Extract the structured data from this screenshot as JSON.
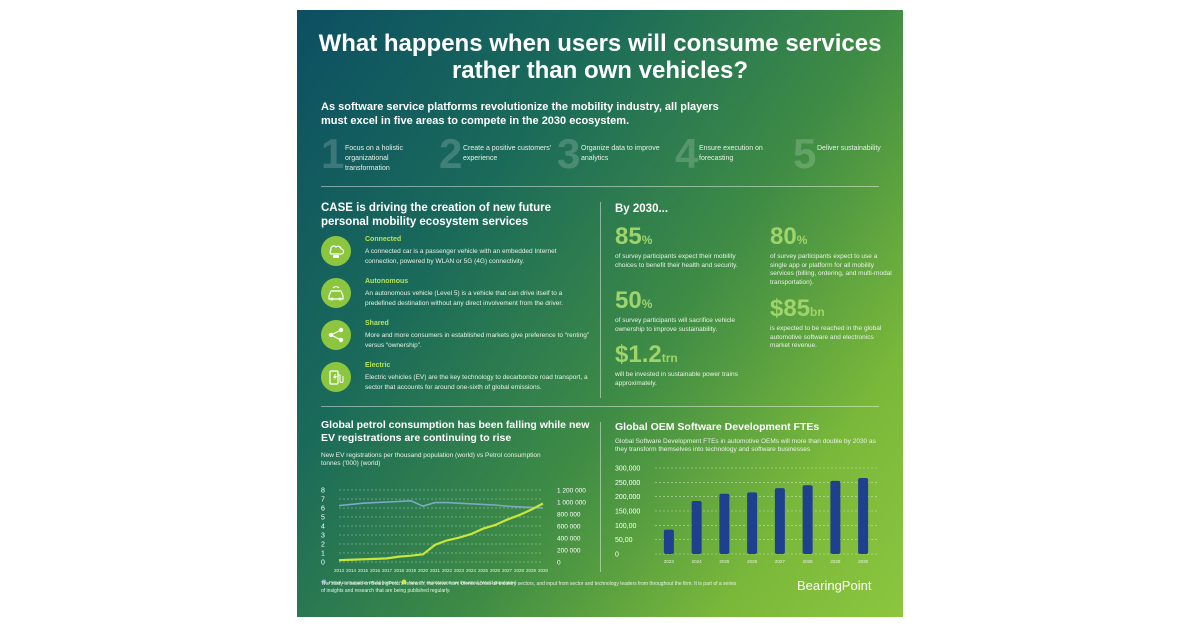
{
  "title": "What happens when users will consume services rather than own vehicles?",
  "intro": "As software service platforms revolutionize the mobility industry, all players must excel in five areas to compete in the 2030 ecosystem.",
  "steps": [
    {
      "num": "1",
      "text": "Focus on a holistic organizational transformation"
    },
    {
      "num": "2",
      "text": "Create a positive customers’ experience"
    },
    {
      "num": "3",
      "text": "Organize data to improve analytics"
    },
    {
      "num": "4",
      "text": "Ensure execution on forecasting"
    },
    {
      "num": "5",
      "text": "Deliver sustainability"
    }
  ],
  "case": {
    "heading": "CASE is driving the creation of new future personal mobility ecosystem services",
    "items": [
      {
        "icon": "cloud-car-icon",
        "title": "Connected",
        "desc": "A connected car is a passenger vehicle with an embedded Internet connection, powered by WLAN or 5G (4G) connectivity."
      },
      {
        "icon": "autonomous-car-icon",
        "title": "Autonomous",
        "desc": "An autonomous vehicle (Level 5) is a vehicle that can drive itself to a predefined destination without any direct involvement from the driver."
      },
      {
        "icon": "share-icon",
        "title": "Shared",
        "desc": "More and more consumers in established markets give preference to “renting” versus “ownership”."
      },
      {
        "icon": "ev-charging-icon",
        "title": "Electric",
        "desc": "Electric vehicles (EV) are the key technology to decarbonize road transport, a sector that accounts for around one-sixth of global emissions."
      }
    ]
  },
  "by2030": {
    "heading": "By 2030...",
    "stats": [
      {
        "value": "85",
        "unit": "%",
        "desc": "of survey participants expect their mobility choices to benefit their health and security."
      },
      {
        "value": "80",
        "unit": "%",
        "desc": "of survey participants expect to use a single app or platform for all mobility services (billing, ordering, and multi-modal transportation)."
      },
      {
        "value": "50",
        "unit": "%",
        "desc": "of survey participants will sacrifice vehicle ownership to improve sustainability."
      },
      {
        "value": "$85",
        "unit": "bn",
        "desc": "is expected to be reached in the global automotive software and electronics market revenue."
      },
      {
        "value": "$1.2",
        "unit": "trn",
        "desc": "will be invested in sustainable power trains approximately."
      }
    ]
  },
  "chart_data": [
    {
      "type": "line",
      "title": "Global petrol consumption has been falling while new EV registrations are continuing to rise",
      "subtitle": "New EV registrations per thousand population (world) vs Petrol consumption tonnes ('000) (world)",
      "x": [
        "2013",
        "2014",
        "2015",
        "2016",
        "2017",
        "2018",
        "2019",
        "2020",
        "2021",
        "2022",
        "2023",
        "2024",
        "2025",
        "2026",
        "2027",
        "2028",
        "2029",
        "2030"
      ],
      "y_left_ticks": [
        "0",
        "1",
        "2",
        "3",
        "4",
        "5",
        "6",
        "7",
        "8"
      ],
      "y_right_ticks": [
        "0",
        "200 000",
        "400 000",
        "600 000",
        "800 000",
        "1 000 000",
        "1 200 000"
      ],
      "ylim_left": [
        0,
        8
      ],
      "ylim_right": [
        0,
        1200000
      ],
      "grid": true,
      "legend_position": "bottom-left",
      "series": [
        {
          "name": "Petrol consumption World (tonnes)",
          "axis": "right",
          "color": "#7fa7c8",
          "values": [
            940000,
            960000,
            980000,
            990000,
            1000000,
            1010000,
            1020000,
            930000,
            990000,
            990000,
            980000,
            970000,
            960000,
            950000,
            930000,
            920000,
            910000,
            900000
          ]
        },
        {
          "name": "New EV registrations per thousand (World population)",
          "axis": "left",
          "color": "#c8e63c",
          "values": [
            0.2,
            0.25,
            0.3,
            0.35,
            0.4,
            0.6,
            0.7,
            0.85,
            1.9,
            2.4,
            2.7,
            3.1,
            3.7,
            4.1,
            4.7,
            5.2,
            5.8,
            6.5
          ]
        }
      ]
    },
    {
      "type": "bar",
      "title": "Global OEM Software Development FTEs",
      "subtitle": "Global Software Development FTEs in automotive OEMs will more than double by 2030 as they transform themselves into technology and software businesses",
      "categories": [
        "2023",
        "2024",
        "2025",
        "2026",
        "2027",
        "2028",
        "2029",
        "2030"
      ],
      "values": [
        85000,
        185000,
        210000,
        215000,
        230000,
        240000,
        255000,
        265000
      ],
      "y_ticks": [
        "0",
        "50,00",
        "100,00",
        "150,000",
        "200,000",
        "250,000",
        "300,000"
      ],
      "ylim": [
        0,
        300000
      ],
      "color": "#1f3f8f",
      "grid": true
    }
  ],
  "footer": "The study is based on BearingPoint’s research, the views from clients across all industry sectors, and input from sector and technology leaders from throughout the firm. It is part of a series of insights and research that are being published regularly.",
  "logo": {
    "text": "BearingPoint",
    "mark": "."
  }
}
